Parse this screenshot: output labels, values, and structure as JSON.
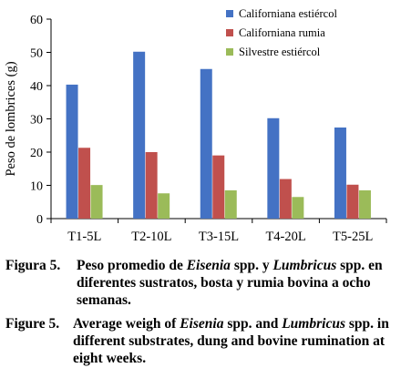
{
  "chart_data": {
    "type": "bar",
    "title": "",
    "xlabel": "",
    "ylabel": "Peso de lombrices (g)",
    "ylim": [
      0,
      60
    ],
    "yticks": [
      0,
      10,
      20,
      30,
      40,
      50,
      60
    ],
    "grid": false,
    "legend_position": "top-right",
    "categories": [
      "T1-5L",
      "T2-10L",
      "T3-15L",
      "T4-20L",
      "T5-25L"
    ],
    "series": [
      {
        "name": "Californiana estiércol",
        "color": "#4472C4",
        "values": [
          40.3,
          50.2,
          45.0,
          30.2,
          27.4
        ]
      },
      {
        "name": "Californiana rumia",
        "color": "#C0504D",
        "values": [
          21.3,
          20.0,
          19.0,
          11.9,
          10.2
        ]
      },
      {
        "name": "Silvestre estiércol",
        "color": "#9BBB59",
        "values": [
          10.1,
          7.6,
          8.5,
          6.5,
          8.5
        ]
      }
    ]
  },
  "captions": {
    "es": {
      "label": "Figura 5.",
      "t1": " Peso promedio de ",
      "i1": "Eisenia",
      "t2": " spp. y ",
      "i2": "Lumbricus",
      "t3": " spp. en diferentes sustratos, bosta y rumia bovina a ocho semanas."
    },
    "en": {
      "label": "Figure 5.",
      "t1": " Average weigh of ",
      "i1": "Eisenia",
      "t2": " spp. and ",
      "i2": "Lumbricus",
      "t3": " spp. in different substrates, dung and bovine rumination at eight weeks."
    }
  }
}
